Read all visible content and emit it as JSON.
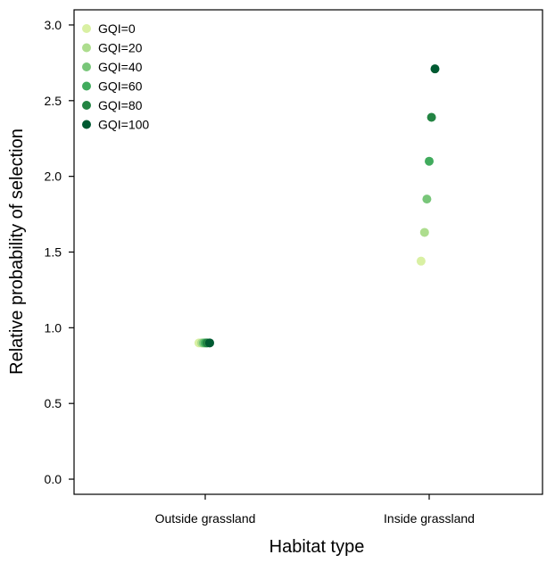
{
  "chart_data": {
    "type": "scatter",
    "xlabel": "Habitat type",
    "ylabel": "Relative probability of selection",
    "categories": [
      "Outside grassland",
      "Inside grassland"
    ],
    "ylim": [
      -0.1,
      3.1
    ],
    "yticks": [
      "0.0",
      "0.5",
      "1.0",
      "1.5",
      "2.0",
      "2.5",
      "3.0"
    ],
    "yticks_values": [
      0.0,
      0.5,
      1.0,
      1.5,
      2.0,
      2.5,
      3.0
    ],
    "legend_position": "top-left",
    "grid": false,
    "series": [
      {
        "name": "GQI=0",
        "color": "#d9f0a3",
        "values": [
          0.9,
          1.44
        ]
      },
      {
        "name": "GQI=20",
        "color": "#addd8e",
        "values": [
          0.9,
          1.63
        ]
      },
      {
        "name": "GQI=40",
        "color": "#78c679",
        "values": [
          0.9,
          1.85
        ]
      },
      {
        "name": "GQI=60",
        "color": "#41ab5d",
        "values": [
          0.9,
          2.1
        ]
      },
      {
        "name": "GQI=80",
        "color": "#238443",
        "values": [
          0.9,
          2.39
        ]
      },
      {
        "name": "GQI=100",
        "color": "#005a32",
        "values": [
          0.9,
          2.71
        ]
      }
    ]
  }
}
